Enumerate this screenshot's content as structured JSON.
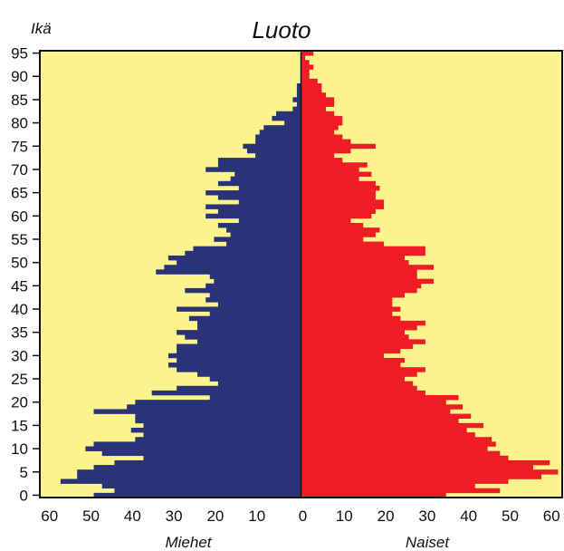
{
  "chart_data": {
    "type": "bar",
    "orientation": "horizontal",
    "subtype": "population-pyramid",
    "title": "Luoto",
    "ylabel": "Ikä",
    "y_ticks": [
      0,
      5,
      10,
      15,
      20,
      25,
      30,
      35,
      40,
      45,
      50,
      55,
      60,
      65,
      70,
      75,
      80,
      85,
      90,
      95
    ],
    "x_ticks_left": [
      "60",
      "50",
      "40",
      "30",
      "20",
      "10"
    ],
    "x_ticks_right": [
      "0",
      "10",
      "20",
      "30",
      "40",
      "50",
      "60"
    ],
    "xlim": [
      -62,
      63
    ],
    "ylim": [
      0,
      96
    ],
    "left_label": "Miehet",
    "right_label": "Naiset",
    "colors": {
      "men": "#2a3377",
      "women": "#ee1c24",
      "background": "#fbf48c",
      "frame": "#111111"
    },
    "ages": [
      0,
      1,
      2,
      3,
      4,
      5,
      6,
      7,
      8,
      9,
      10,
      11,
      12,
      13,
      14,
      15,
      16,
      17,
      18,
      19,
      20,
      21,
      22,
      23,
      24,
      25,
      26,
      27,
      28,
      29,
      30,
      31,
      32,
      33,
      34,
      35,
      36,
      37,
      38,
      39,
      40,
      41,
      42,
      43,
      44,
      45,
      46,
      47,
      48,
      49,
      50,
      51,
      52,
      53,
      54,
      55,
      56,
      57,
      58,
      59,
      60,
      61,
      62,
      63,
      64,
      65,
      66,
      67,
      68,
      69,
      70,
      71,
      72,
      73,
      74,
      75,
      76,
      77,
      78,
      79,
      80,
      81,
      82,
      83,
      84,
      85,
      86,
      87,
      88,
      89,
      90,
      91,
      92,
      93,
      94,
      95
    ],
    "series": [
      {
        "name": "Miehet",
        "values": [
          50,
          45,
          48,
          58,
          54,
          54,
          50,
          45,
          38,
          48,
          52,
          50,
          40,
          38,
          41,
          38,
          40,
          40,
          50,
          42,
          40,
          22,
          36,
          30,
          20,
          22,
          25,
          30,
          32,
          30,
          32,
          30,
          30,
          25,
          28,
          30,
          25,
          25,
          27,
          22,
          30,
          20,
          23,
          22,
          28,
          23,
          21,
          22,
          35,
          33,
          30,
          32,
          28,
          26,
          18,
          21,
          17,
          18,
          20,
          15,
          23,
          20,
          23,
          15,
          20,
          23,
          15,
          20,
          17,
          16,
          23,
          20,
          20,
          11,
          13,
          14,
          11,
          11,
          10,
          9,
          4,
          7,
          6,
          2,
          1,
          2,
          1,
          1,
          1,
          0,
          0,
          0,
          0,
          0,
          0,
          0
        ]
      },
      {
        "name": "Naiset",
        "values": [
          35,
          48,
          42,
          50,
          58,
          62,
          56,
          60,
          50,
          48,
          45,
          47,
          46,
          42,
          40,
          44,
          38,
          41,
          36,
          39,
          35,
          38,
          30,
          28,
          27,
          25,
          28,
          30,
          24,
          25,
          20,
          24,
          27,
          30,
          26,
          25,
          28,
          30,
          24,
          22,
          24,
          22,
          22,
          25,
          28,
          29,
          32,
          28,
          28,
          32,
          26,
          25,
          30,
          30,
          20,
          15,
          18,
          19,
          15,
          12,
          17,
          18,
          20,
          20,
          18,
          18,
          19,
          18,
          14,
          17,
          14,
          16,
          10,
          8,
          12,
          18,
          12,
          10,
          8,
          9,
          10,
          10,
          8,
          6,
          8,
          8,
          6,
          5,
          5,
          4,
          2,
          2,
          3,
          2,
          1,
          3
        ]
      }
    ]
  }
}
